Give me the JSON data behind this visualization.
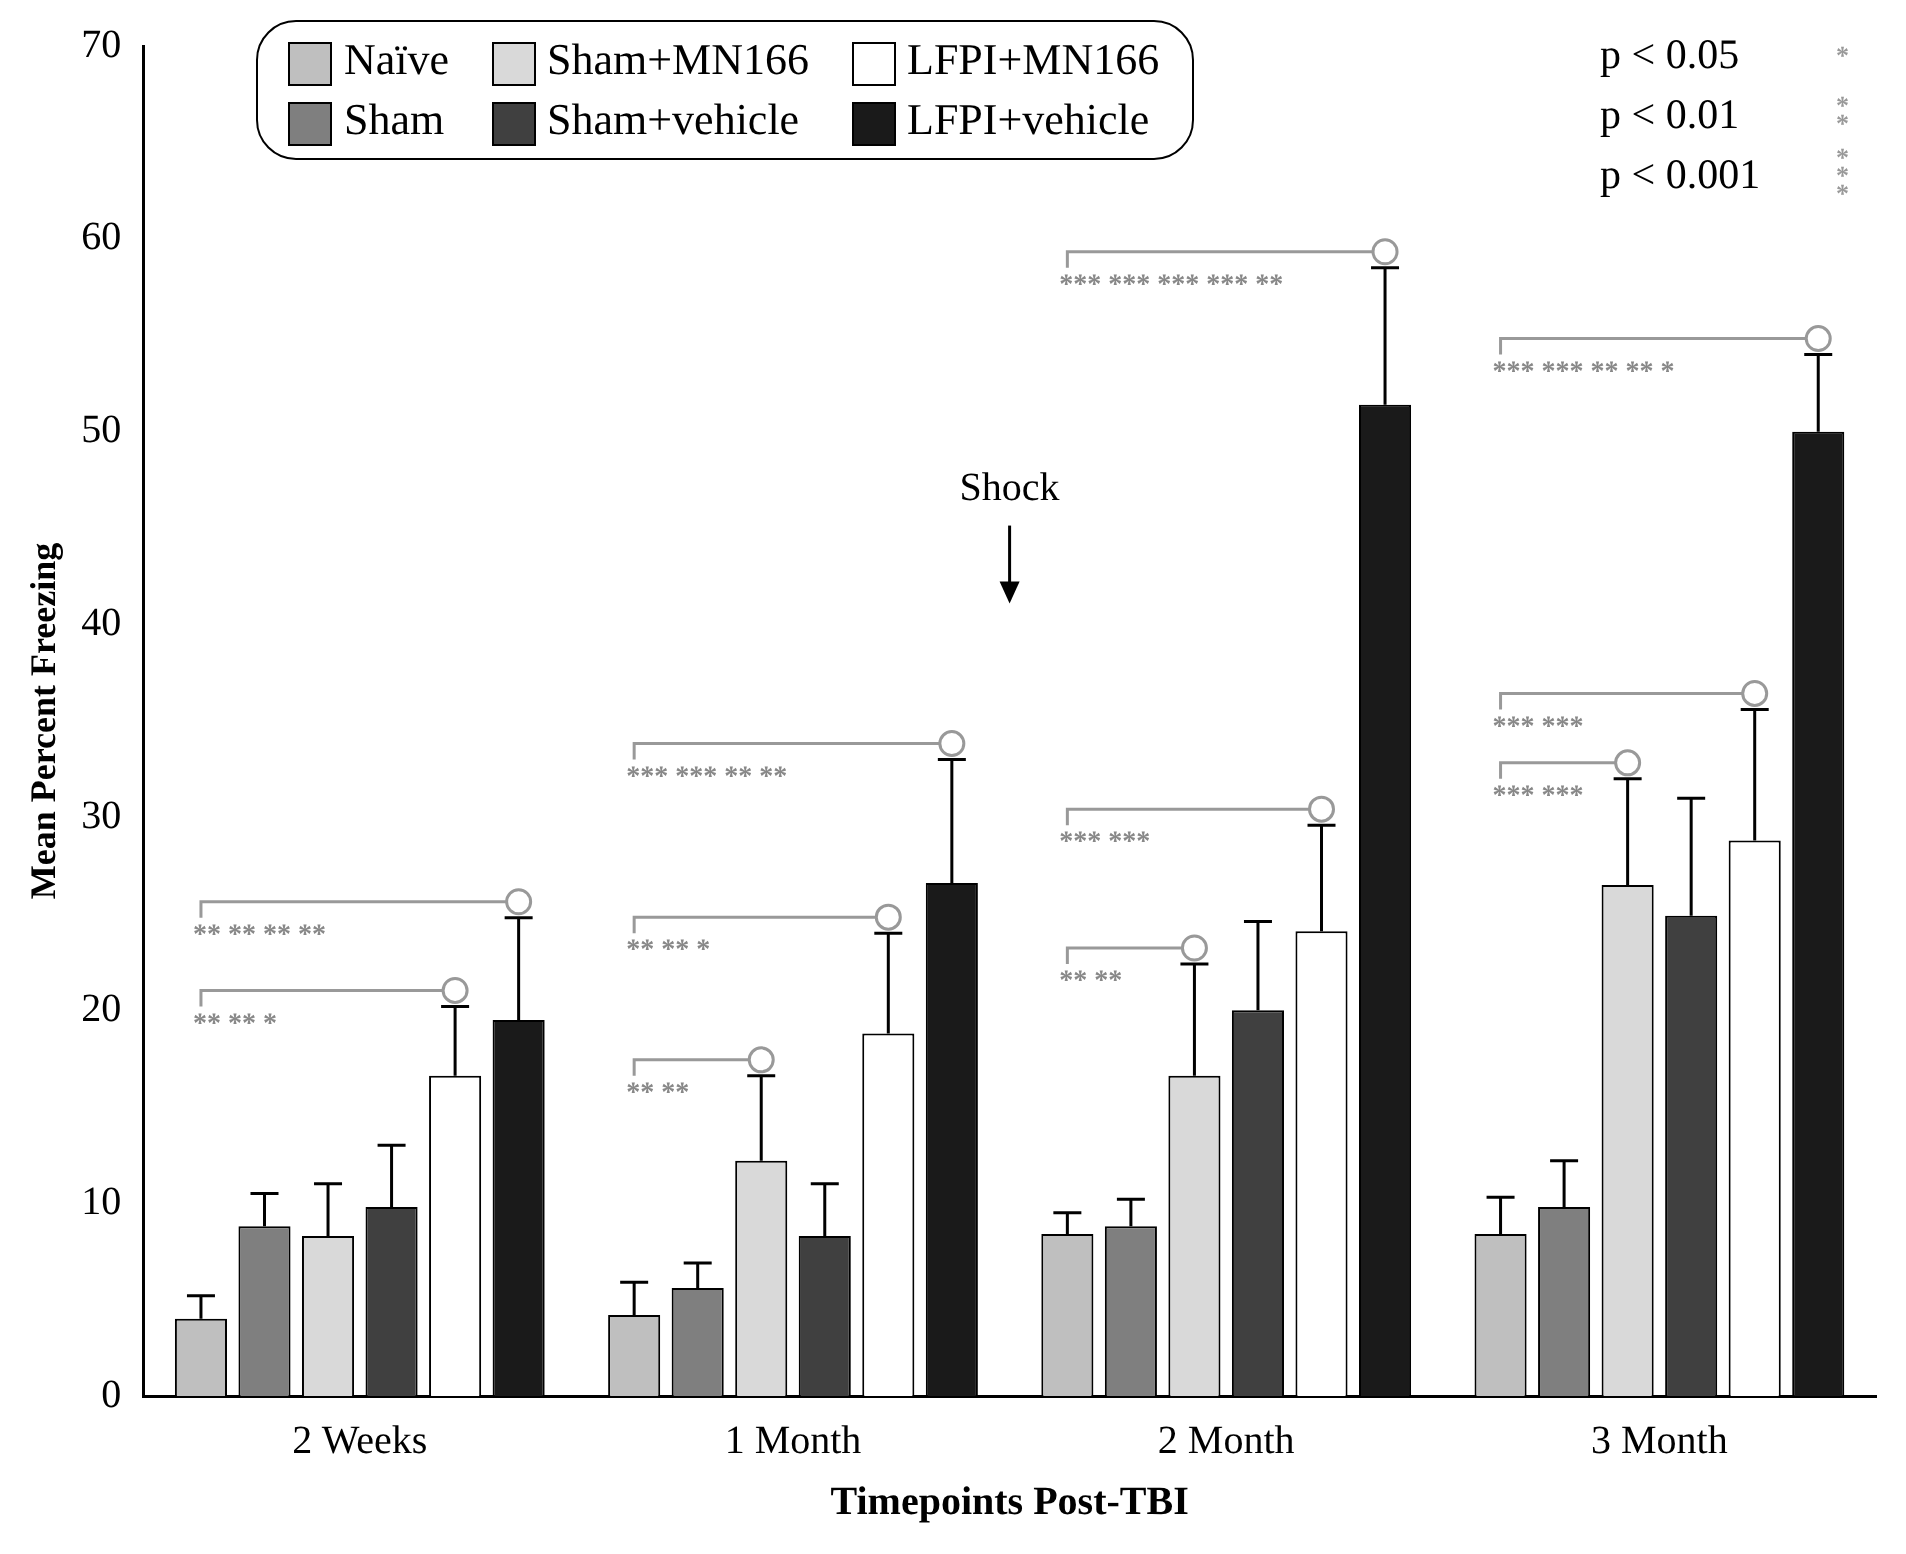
{
  "chart_data": {
    "type": "bar",
    "xlabel": "Timepoints Post-TBI",
    "ylabel": "Mean Percent Freezing",
    "categories": [
      "2 Weeks",
      "1 Month",
      "2 Month",
      "3 Month"
    ],
    "series": [
      {
        "name": "Naïve",
        "color": "#bfbfbf",
        "values": [
          4,
          4.2,
          8.4,
          8.4
        ],
        "errors": [
          [
            4,
            5.2
          ],
          [
            4.2,
            5.9
          ],
          [
            8.4,
            9.5
          ],
          [
            8.4,
            10.3
          ]
        ]
      },
      {
        "name": "Sham",
        "color": "#7f7f7f",
        "values": [
          8.8,
          5.6,
          8.8,
          9.8
        ],
        "errors": [
          [
            8.8,
            10.5
          ],
          [
            5.6,
            6.9
          ],
          [
            8.8,
            10.2
          ],
          [
            9.8,
            12.2
          ]
        ]
      },
      {
        "name": "Sham+MN166",
        "color": "#d9d9d9",
        "values": [
          8.3,
          12.2,
          16.6,
          26.5
        ],
        "errors": [
          [
            8.3,
            11
          ],
          [
            12.2,
            16.6
          ],
          [
            16.6,
            22.4
          ],
          [
            26.5,
            32
          ]
        ]
      },
      {
        "name": "Sham+vehicle",
        "color": "#404040",
        "values": [
          9.8,
          8.3,
          20,
          24.9
        ],
        "errors": [
          [
            9.8,
            13
          ],
          [
            8.3,
            11
          ],
          [
            20,
            24.6
          ],
          [
            24.9,
            31
          ]
        ]
      },
      {
        "name": "LFPI+MN166",
        "color": "#ffffff",
        "values": [
          16.6,
          18.8,
          24.1,
          28.8
        ],
        "errors": [
          [
            16.6,
            20.2
          ],
          [
            18.8,
            24
          ],
          [
            24.1,
            29.6
          ],
          [
            28.8,
            35.6
          ]
        ]
      },
      {
        "name": "LFPI+vehicle",
        "color": "#1a1a1a",
        "values": [
          19.5,
          26.6,
          51.4,
          50
        ],
        "errors": [
          [
            19.5,
            24.8
          ],
          [
            26.6,
            33
          ],
          [
            51.4,
            58.5
          ],
          [
            50,
            54
          ]
        ]
      }
    ],
    "ylim": [
      0,
      70
    ],
    "yticks": [
      0,
      10,
      20,
      30,
      40,
      50,
      60,
      70
    ],
    "grid": false,
    "legend": "top",
    "annotations": [
      "Shock",
      "p < 0.05 *",
      "p < 0.01 **",
      "p < 0.001 ***",
      "** ** ** **",
      "** ** *",
      "*** *** ** **",
      "** ** *",
      "** **",
      "*** *** *** *** **",
      "*** ***",
      "** **",
      "*** *** ** ** *",
      "*** ***",
      "*** ***"
    ]
  }
}
